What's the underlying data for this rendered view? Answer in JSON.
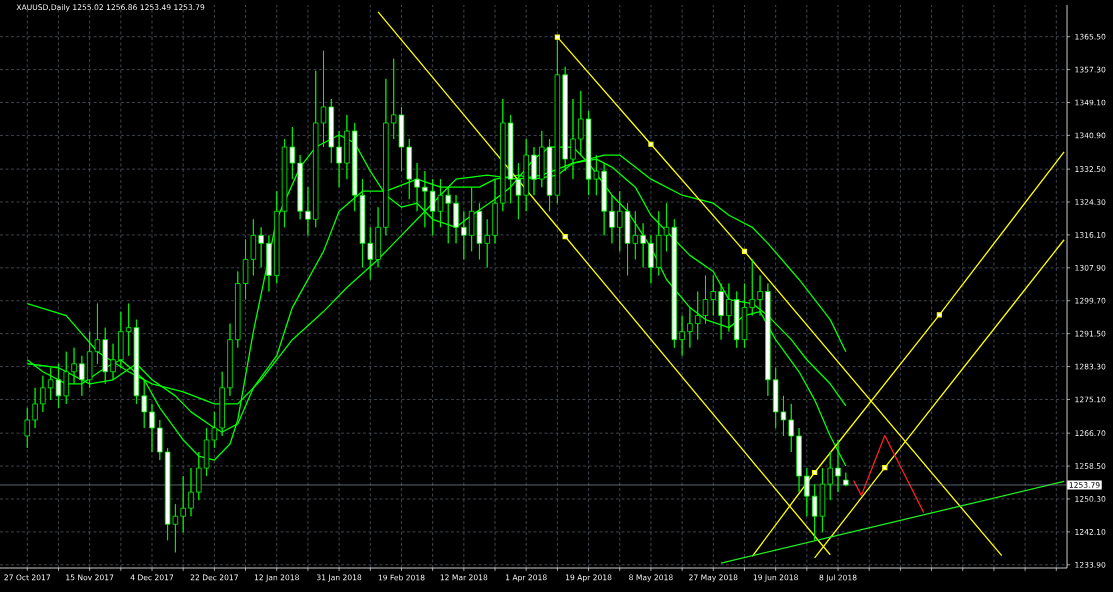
{
  "chart_data": {
    "type": "candlestick",
    "title": "XAUUSD,Daily 1255.02 1256.86 1253.49 1253.79",
    "color": "#00ff00",
    "grid": true,
    "ylim": [
      1233.1,
      1373.4
    ],
    "categories": [
      "27 Oct 2017",
      null,
      null,
      null,
      null,
      null,
      null,
      null,
      "15 Nov 2017",
      null,
      null,
      null,
      null,
      null,
      null,
      null,
      "4 Dec 2017",
      null,
      null,
      null,
      null,
      null,
      null,
      null,
      "22 Dec 2017",
      null,
      null,
      null,
      null,
      null,
      null,
      null,
      "12 Jan 2018",
      null,
      null,
      null,
      null,
      null,
      null,
      null,
      "31 Jan 2018",
      null,
      null,
      null,
      null,
      null,
      null,
      null,
      "19 Feb 2018",
      null,
      null,
      null,
      null,
      null,
      null,
      null,
      "12 Mar 2018",
      null,
      null,
      null,
      null,
      null,
      null,
      null,
      "1 Apr 2018",
      null,
      null,
      null,
      null,
      null,
      null,
      null,
      "19 Apr 2018",
      null,
      null,
      null,
      null,
      null,
      null,
      null,
      "8 May 2018",
      null,
      null,
      null,
      null,
      null,
      null,
      null,
      "27 May 2018",
      null,
      null,
      null,
      null,
      null,
      null,
      null,
      "19 Jun 2018",
      null,
      null,
      null,
      null,
      null,
      null,
      null,
      "8 Jul 2018",
      null,
      null,
      null,
      null,
      null,
      null,
      null,
      null,
      null,
      null,
      null,
      null,
      null,
      null,
      null,
      null,
      null,
      null,
      null,
      null,
      null,
      null,
      null,
      null,
      null,
      null,
      null,
      null,
      null
    ],
    "yticks": [
      {
        "value": 1233.9,
        "label": "1233.90"
      },
      {
        "value": 1242.1,
        "label": "1242.10"
      },
      {
        "value": 1250.3,
        "label": "1250.30"
      },
      {
        "value": 1258.5,
        "label": "1258.50"
      },
      {
        "value": 1266.7,
        "label": "1266.70"
      },
      {
        "value": 1275.1,
        "label": "1275.10"
      },
      {
        "value": 1283.3,
        "label": "1283.30"
      },
      {
        "value": 1291.5,
        "label": "1291.50"
      },
      {
        "value": 1299.7,
        "label": "1299.70"
      },
      {
        "value": 1307.9,
        "label": "1307.90"
      },
      {
        "value": 1316.1,
        "label": "1316.10"
      },
      {
        "value": 1324.3,
        "label": "1324.30"
      },
      {
        "value": 1332.5,
        "label": "1332.50"
      },
      {
        "value": 1340.9,
        "label": "1340.90"
      },
      {
        "value": 1349.1,
        "label": "1349.10"
      },
      {
        "value": 1357.3,
        "label": "1357.30"
      },
      {
        "value": 1365.5,
        "label": "1365.50"
      }
    ],
    "ref_lines": [
      {
        "axis": "y",
        "value": 1253.79,
        "label": "1253.79",
        "color": "#8090a0"
      }
    ],
    "ohlc": [
      [
        1266,
        1273,
        1263,
        1270
      ],
      [
        1270,
        1278,
        1268,
        1274
      ],
      [
        1274,
        1281,
        1272,
        1278
      ],
      [
        1278,
        1283,
        1275,
        1280
      ],
      [
        1280,
        1284,
        1273,
        1276
      ],
      [
        1276,
        1287,
        1274,
        1282
      ],
      [
        1282,
        1288,
        1279,
        1284
      ],
      [
        1284,
        1286,
        1276,
        1280
      ],
      [
        1280,
        1292,
        1278,
        1287
      ],
      [
        1287,
        1299,
        1284,
        1290
      ],
      [
        1290,
        1293,
        1279,
        1282
      ],
      [
        1282,
        1289,
        1280,
        1285
      ],
      [
        1285,
        1297,
        1283,
        1292
      ],
      [
        1292,
        1299,
        1286,
        1293
      ],
      [
        1293,
        1295,
        1274,
        1276
      ],
      [
        1276,
        1280,
        1268,
        1272
      ],
      [
        1272,
        1274,
        1262,
        1268
      ],
      [
        1268,
        1270,
        1260,
        1262
      ],
      [
        1262,
        1263,
        1240,
        1244
      ],
      [
        1244,
        1249,
        1237,
        1246
      ],
      [
        1246,
        1256,
        1242,
        1248
      ],
      [
        1248,
        1258,
        1246,
        1252
      ],
      [
        1252,
        1262,
        1250,
        1258
      ],
      [
        1258,
        1268,
        1256,
        1265
      ],
      [
        1265,
        1272,
        1263,
        1268
      ],
      [
        1268,
        1282,
        1266,
        1278
      ],
      [
        1278,
        1294,
        1276,
        1290
      ],
      [
        1290,
        1307,
        1288,
        1304
      ],
      [
        1304,
        1315,
        1300,
        1310
      ],
      [
        1310,
        1320,
        1306,
        1316
      ],
      [
        1316,
        1318,
        1308,
        1314
      ],
      [
        1314,
        1316,
        1302,
        1306
      ],
      [
        1306,
        1327,
        1304,
        1322
      ],
      [
        1322,
        1340,
        1318,
        1338
      ],
      [
        1338,
        1343,
        1330,
        1334
      ],
      [
        1334,
        1336,
        1320,
        1322
      ],
      [
        1322,
        1328,
        1316,
        1320
      ],
      [
        1320,
        1357,
        1318,
        1344
      ],
      [
        1344,
        1362,
        1338,
        1348
      ],
      [
        1348,
        1350,
        1334,
        1338
      ],
      [
        1338,
        1342,
        1328,
        1334
      ],
      [
        1334,
        1346,
        1330,
        1342
      ],
      [
        1342,
        1344,
        1322,
        1326
      ],
      [
        1326,
        1330,
        1308,
        1314
      ],
      [
        1314,
        1318,
        1305,
        1310
      ],
      [
        1310,
        1323,
        1308,
        1318
      ],
      [
        1318,
        1355,
        1316,
        1344
      ],
      [
        1344,
        1360,
        1340,
        1346
      ],
      [
        1346,
        1348,
        1332,
        1338
      ],
      [
        1338,
        1340,
        1325,
        1330
      ],
      [
        1330,
        1334,
        1322,
        1328
      ],
      [
        1328,
        1332,
        1318,
        1327
      ],
      [
        1327,
        1330,
        1316,
        1322
      ],
      [
        1322,
        1330,
        1318,
        1326
      ],
      [
        1326,
        1328,
        1314,
        1324
      ],
      [
        1324,
        1326,
        1314,
        1318
      ],
      [
        1318,
        1322,
        1310,
        1316
      ],
      [
        1316,
        1328,
        1312,
        1322
      ],
      [
        1322,
        1324,
        1310,
        1314
      ],
      [
        1314,
        1320,
        1308,
        1316
      ],
      [
        1316,
        1330,
        1314,
        1324
      ],
      [
        1324,
        1350,
        1322,
        1344
      ],
      [
        1344,
        1346,
        1324,
        1330
      ],
      [
        1330,
        1334,
        1320,
        1326
      ],
      [
        1326,
        1340,
        1322,
        1336
      ],
      [
        1336,
        1338,
        1326,
        1330
      ],
      [
        1330,
        1342,
        1328,
        1338
      ],
      [
        1338,
        1340,
        1322,
        1326
      ],
      [
        1326,
        1365,
        1324,
        1356
      ],
      [
        1356,
        1358,
        1332,
        1335
      ],
      [
        1335,
        1350,
        1330,
        1340
      ],
      [
        1340,
        1352,
        1336,
        1345
      ],
      [
        1345,
        1347,
        1326,
        1330
      ],
      [
        1330,
        1336,
        1326,
        1332
      ],
      [
        1332,
        1334,
        1316,
        1322
      ],
      [
        1322,
        1326,
        1314,
        1318
      ],
      [
        1318,
        1327,
        1312,
        1322
      ],
      [
        1322,
        1324,
        1306,
        1314
      ],
      [
        1314,
        1322,
        1310,
        1316
      ],
      [
        1316,
        1319,
        1308,
        1314
      ],
      [
        1314,
        1316,
        1304,
        1308
      ],
      [
        1308,
        1322,
        1306,
        1316
      ],
      [
        1316,
        1324,
        1312,
        1318
      ],
      [
        1318,
        1320,
        1288,
        1290
      ],
      [
        1290,
        1296,
        1286,
        1292
      ],
      [
        1292,
        1298,
        1288,
        1294
      ],
      [
        1294,
        1302,
        1290,
        1296
      ],
      [
        1296,
        1306,
        1294,
        1300
      ],
      [
        1300,
        1306,
        1296,
        1302
      ],
      [
        1302,
        1304,
        1290,
        1296
      ],
      [
        1296,
        1304,
        1292,
        1300
      ],
      [
        1300,
        1302,
        1288,
        1290
      ],
      [
        1290,
        1304,
        1288,
        1298
      ],
      [
        1298,
        1310,
        1296,
        1300
      ],
      [
        1300,
        1306,
        1296,
        1302
      ],
      [
        1302,
        1304,
        1276,
        1280
      ],
      [
        1280,
        1283,
        1268,
        1272
      ],
      [
        1272,
        1276,
        1266,
        1270
      ],
      [
        1270,
        1274,
        1262,
        1266
      ],
      [
        1266,
        1268,
        1252,
        1256
      ],
      [
        1256,
        1258,
        1246,
        1251
      ],
      [
        1251,
        1254,
        1240,
        1246
      ],
      [
        1246,
        1258,
        1242,
        1254
      ],
      [
        1254,
        1262,
        1250,
        1258
      ],
      [
        1258,
        1265,
        1252,
        1256
      ],
      [
        1255.02,
        1256.86,
        1253.49,
        1253.79
      ],
      null,
      null,
      null,
      null,
      null,
      null,
      null,
      null,
      null,
      null,
      null,
      null,
      null,
      null,
      null,
      null,
      null,
      null,
      null,
      null,
      null,
      null,
      null,
      null,
      null,
      null,
      null,
      null
    ],
    "series": [
      {
        "type": "line",
        "color": "#00ff00",
        "values": [
          1285,
          null,
          1282,
          null,
          null,
          1279,
          null,
          1279,
          null,
          null,
          1283,
          null,
          1285,
          null,
          null,
          1280,
          null,
          1273,
          null,
          null,
          1265,
          null,
          1261,
          null,
          1260,
          null,
          1264,
          1270,
          null,
          1292,
          null,
          null,
          1320,
          null,
          null,
          1333,
          null,
          1338,
          null,
          null,
          1341,
          null,
          1339,
          null,
          1332,
          null,
          1326,
          null,
          1323,
          null,
          1324,
          null,
          1320,
          null,
          null,
          1318,
          null,
          1321,
          null,
          null,
          1325,
          null,
          1328,
          null,
          null,
          1335,
          null,
          1338,
          null,
          null,
          1338,
          null,
          1334,
          null,
          null,
          1326,
          null,
          1322,
          null,
          null,
          1313,
          null,
          1305,
          null,
          null,
          1298,
          null,
          1295,
          null,
          null,
          1293,
          null,
          1296,
          null,
          1297,
          null,
          1290,
          null,
          null,
          1282,
          null,
          1275,
          null,
          1266,
          null,
          1258.5,
          null,
          null,
          null,
          null,
          null,
          null,
          null,
          null,
          null,
          null,
          null,
          null,
          null,
          null,
          null,
          null,
          null,
          null,
          null,
          null,
          null,
          null,
          null,
          null,
          null,
          null,
          null,
          null
        ]
      },
      {
        "type": "line",
        "color": "#00ff00",
        "values": [
          1284,
          null,
          null,
          null,
          1283,
          null,
          null,
          null,
          1279,
          null,
          null,
          1280,
          null,
          null,
          1284,
          null,
          1280,
          null,
          null,
          1276,
          null,
          1272,
          null,
          null,
          1268,
          1267,
          null,
          1269,
          null,
          1278,
          null,
          null,
          1286,
          null,
          1298,
          null,
          null,
          null,
          1312,
          null,
          1322,
          null,
          null,
          1327,
          null,
          null,
          1327,
          null,
          null,
          null,
          1330,
          null,
          null,
          1328,
          null,
          1328,
          null,
          null,
          1328,
          null,
          1330,
          null,
          null,
          1331,
          null,
          1330,
          null,
          null,
          1331,
          null,
          1334,
          null,
          null,
          1335,
          null,
          1333,
          null,
          null,
          1328,
          null,
          1321,
          null,
          null,
          1315,
          null,
          1311,
          null,
          null,
          1307,
          null,
          1300,
          null,
          null,
          1299,
          null,
          1296,
          null,
          null,
          1290,
          null,
          1285,
          null,
          null,
          1279,
          null,
          1273.5,
          null,
          null,
          null,
          null,
          null,
          null,
          null,
          null,
          null,
          null,
          null,
          null,
          null,
          null,
          null,
          null,
          null,
          null,
          null,
          null,
          null,
          null,
          null,
          null,
          null,
          null,
          null,
          null
        ]
      },
      {
        "type": "line",
        "color": "#00ff00",
        "values": [
          1299,
          null,
          null,
          null,
          null,
          1296,
          null,
          null,
          null,
          1287,
          null,
          null,
          null,
          1282,
          null,
          null,
          1279,
          null,
          null,
          null,
          1277,
          null,
          null,
          null,
          1274,
          null,
          null,
          1274,
          null,
          null,
          1280,
          null,
          null,
          null,
          1290,
          null,
          null,
          null,
          1297,
          null,
          null,
          1303,
          null,
          null,
          null,
          1310,
          null,
          null,
          1316,
          null,
          1320,
          null,
          null,
          1326,
          null,
          1330,
          null,
          null,
          null,
          1331,
          null,
          null,
          null,
          1330,
          null,
          null,
          1331,
          null,
          null,
          null,
          1334,
          null,
          null,
          null,
          1336,
          null,
          1336,
          null,
          null,
          null,
          1330,
          null,
          null,
          null,
          1326,
          null,
          null,
          null,
          1324,
          null,
          1321,
          null,
          null,
          1318,
          null,
          1314,
          null,
          null,
          null,
          1305,
          null,
          null,
          null,
          1295,
          null,
          1287,
          null,
          null,
          null,
          null,
          null,
          null,
          null,
          null,
          null,
          null,
          null,
          null,
          null,
          null,
          null,
          null,
          null,
          null,
          null,
          null,
          null,
          null,
          null,
          null,
          null,
          null,
          null,
          null
        ]
      },
      {
        "type": "line",
        "color": "#ffff00",
        "values": [
          null,
          null,
          null,
          null,
          null,
          null,
          null,
          null,
          null,
          null,
          null,
          null,
          null,
          null,
          null,
          null,
          null,
          null,
          null,
          null,
          null,
          null,
          null,
          null,
          null,
          null,
          null,
          null,
          null,
          null,
          null,
          null,
          null,
          null,
          null,
          null,
          null,
          null,
          null,
          null,
          null,
          null,
          null,
          null,
          null,
          1371.7,
          null,
          null,
          null,
          null,
          null,
          null,
          null,
          null,
          null,
          null,
          null,
          null,
          null,
          null,
          null,
          null,
          null,
          null,
          null,
          null,
          null,
          null,
          null,
          1315.7,
          null,
          null,
          null,
          null,
          null,
          null,
          null,
          null,
          null,
          null,
          null,
          null,
          null,
          null,
          null,
          null,
          null,
          null,
          null,
          null,
          null,
          null,
          null,
          null,
          null,
          null,
          null,
          null,
          null,
          null,
          null,
          null,
          null,
          1236.4,
          null,
          null,
          null,
          null,
          null,
          null,
          null,
          null,
          null,
          null,
          null,
          null,
          null,
          null,
          null,
          null,
          null,
          null,
          null,
          null,
          null,
          null,
          null,
          null,
          null,
          null,
          null,
          null,
          null,
          null
        ]
      },
      {
        "type": "line",
        "color": "#ffff00",
        "values": [
          null,
          null,
          null,
          null,
          null,
          null,
          null,
          null,
          null,
          null,
          null,
          null,
          null,
          null,
          null,
          null,
          null,
          null,
          null,
          null,
          null,
          null,
          null,
          null,
          null,
          null,
          null,
          null,
          null,
          null,
          null,
          null,
          null,
          null,
          null,
          null,
          null,
          null,
          null,
          null,
          null,
          null,
          null,
          null,
          null,
          null,
          null,
          null,
          null,
          null,
          null,
          null,
          null,
          null,
          null,
          null,
          null,
          null,
          null,
          null,
          null,
          null,
          null,
          null,
          null,
          null,
          null,
          null,
          1365.4,
          null,
          null,
          null,
          null,
          null,
          null,
          null,
          null,
          null,
          null,
          null,
          1338.7,
          null,
          null,
          null,
          null,
          null,
          null,
          null,
          null,
          null,
          null,
          null,
          1312,
          null,
          null,
          null,
          null,
          null,
          null,
          null,
          null,
          null,
          null,
          null,
          null,
          null,
          null,
          null,
          null,
          null,
          null,
          null,
          null,
          null,
          null,
          null,
          null,
          null,
          null,
          null,
          null,
          null,
          null,
          null,
          null,
          1236.2,
          null,
          null,
          null,
          null,
          null,
          null,
          null,
          null
        ]
      },
      {
        "type": "line",
        "color": "#ffff00",
        "values": [
          null,
          null,
          null,
          null,
          null,
          null,
          null,
          null,
          null,
          null,
          null,
          null,
          null,
          null,
          null,
          null,
          null,
          null,
          null,
          null,
          null,
          null,
          null,
          null,
          null,
          null,
          null,
          null,
          null,
          null,
          null,
          null,
          null,
          null,
          null,
          null,
          null,
          null,
          null,
          null,
          null,
          null,
          null,
          null,
          null,
          null,
          null,
          null,
          null,
          null,
          null,
          null,
          null,
          null,
          null,
          null,
          null,
          null,
          null,
          null,
          null,
          null,
          null,
          null,
          null,
          null,
          null,
          null,
          null,
          null,
          null,
          null,
          null,
          null,
          null,
          null,
          null,
          null,
          null,
          null,
          null,
          null,
          null,
          null,
          null,
          null,
          null,
          null,
          null,
          null,
          null,
          null,
          null,
          1236,
          null,
          null,
          null,
          null,
          null,
          null,
          null,
          1256.9,
          null,
          null,
          null,
          null,
          null,
          null,
          null,
          null,
          null,
          null,
          null,
          null,
          null,
          null,
          null,
          1296.2,
          null,
          null,
          null,
          null,
          null,
          null,
          null,
          null,
          null,
          null,
          null,
          null,
          null,
          null,
          null,
          1336.8
        ]
      },
      {
        "type": "line",
        "color": "#ffff00",
        "values": [
          null,
          null,
          null,
          null,
          null,
          null,
          null,
          null,
          null,
          null,
          null,
          null,
          null,
          null,
          null,
          null,
          null,
          null,
          null,
          null,
          null,
          null,
          null,
          null,
          null,
          null,
          null,
          null,
          null,
          null,
          null,
          null,
          null,
          null,
          null,
          null,
          null,
          null,
          null,
          null,
          null,
          null,
          null,
          null,
          null,
          null,
          null,
          null,
          null,
          null,
          null,
          null,
          null,
          null,
          null,
          null,
          null,
          null,
          null,
          null,
          null,
          null,
          null,
          null,
          null,
          null,
          null,
          null,
          null,
          null,
          null,
          null,
          null,
          null,
          null,
          null,
          null,
          null,
          null,
          null,
          null,
          null,
          null,
          null,
          null,
          null,
          null,
          null,
          null,
          null,
          null,
          null,
          null,
          null,
          null,
          null,
          null,
          null,
          null,
          null,
          null,
          1235.6,
          null,
          null,
          null,
          null,
          null,
          null,
          null,
          null,
          1258.1,
          null,
          null,
          null,
          null,
          null,
          null,
          null,
          null,
          null,
          null,
          null,
          null,
          null,
          null,
          null,
          null,
          null,
          null,
          null,
          null,
          null,
          null,
          1314.9
        ]
      },
      {
        "type": "line",
        "color": "#22ee22",
        "values": [
          null,
          null,
          null,
          null,
          null,
          null,
          null,
          null,
          null,
          null,
          null,
          null,
          null,
          null,
          null,
          null,
          null,
          null,
          null,
          null,
          null,
          null,
          null,
          null,
          null,
          null,
          null,
          null,
          null,
          null,
          null,
          null,
          null,
          null,
          null,
          null,
          null,
          null,
          null,
          null,
          null,
          null,
          null,
          null,
          null,
          null,
          null,
          null,
          null,
          null,
          null,
          null,
          null,
          null,
          null,
          null,
          null,
          null,
          null,
          null,
          null,
          null,
          null,
          null,
          null,
          null,
          null,
          null,
          null,
          null,
          null,
          null,
          null,
          null,
          null,
          null,
          null,
          null,
          null,
          null,
          null,
          null,
          null,
          null,
          null,
          null,
          null,
          null,
          null,
          1234.3,
          null,
          null,
          null,
          null,
          null,
          null,
          null,
          null,
          null,
          null,
          null,
          null,
          null,
          null,
          null,
          null,
          null,
          null,
          null,
          null,
          null,
          null,
          null,
          null,
          null,
          null,
          null,
          null,
          null,
          null,
          null,
          null,
          null,
          null,
          null,
          null,
          null,
          null,
          null,
          null,
          null,
          null,
          null,
          1254.7
        ]
      },
      {
        "type": "line",
        "color": "#ff2020",
        "values": [
          null,
          null,
          null,
          null,
          null,
          null,
          null,
          null,
          null,
          null,
          null,
          null,
          null,
          null,
          null,
          null,
          null,
          null,
          null,
          null,
          null,
          null,
          null,
          null,
          null,
          null,
          null,
          null,
          null,
          null,
          null,
          null,
          null,
          null,
          null,
          null,
          null,
          null,
          null,
          null,
          null,
          null,
          null,
          null,
          null,
          null,
          null,
          null,
          null,
          null,
          null,
          null,
          null,
          null,
          null,
          null,
          null,
          null,
          null,
          null,
          null,
          null,
          null,
          null,
          null,
          null,
          null,
          null,
          null,
          null,
          null,
          null,
          null,
          null,
          null,
          null,
          null,
          null,
          null,
          null,
          null,
          null,
          null,
          null,
          null,
          null,
          null,
          null,
          null,
          null,
          null,
          null,
          null,
          null,
          null,
          null,
          null,
          null,
          null,
          null,
          null,
          null,
          null,
          null,
          null,
          null,
          1254.9,
          1251.2,
          null,
          null,
          1266.1,
          null,
          null,
          null,
          null,
          1246.9,
          null,
          null,
          null,
          null,
          null,
          null,
          null,
          null,
          null,
          null,
          null,
          null,
          null,
          null,
          null,
          null,
          null,
          null
        ]
      },
      {
        "type": "scatter",
        "color": "#ffff00",
        "marker": "square",
        "values": [
          null,
          null,
          null,
          null,
          null,
          null,
          null,
          null,
          null,
          null,
          null,
          null,
          null,
          null,
          null,
          null,
          null,
          null,
          null,
          null,
          null,
          null,
          null,
          null,
          null,
          null,
          null,
          null,
          null,
          null,
          null,
          null,
          null,
          null,
          null,
          null,
          null,
          null,
          null,
          null,
          null,
          null,
          null,
          null,
          null,
          null,
          null,
          null,
          null,
          null,
          null,
          null,
          null,
          null,
          null,
          null,
          null,
          null,
          null,
          null,
          null,
          null,
          null,
          null,
          null,
          null,
          null,
          null,
          1365.4,
          1315.7,
          null,
          null,
          null,
          null,
          null,
          null,
          null,
          null,
          null,
          null,
          1338.7,
          null,
          null,
          null,
          null,
          null,
          null,
          null,
          null,
          null,
          null,
          null,
          1312,
          null,
          null,
          null,
          null,
          null,
          null,
          null,
          null,
          1256.9,
          null,
          null,
          null,
          null,
          null,
          null,
          null,
          null,
          1258.1,
          null,
          null,
          null,
          null,
          null,
          null,
          1296.2,
          null,
          null,
          null,
          null,
          null,
          null,
          null,
          null,
          null,
          null,
          null,
          null,
          null,
          null,
          null,
          null
        ]
      }
    ]
  }
}
